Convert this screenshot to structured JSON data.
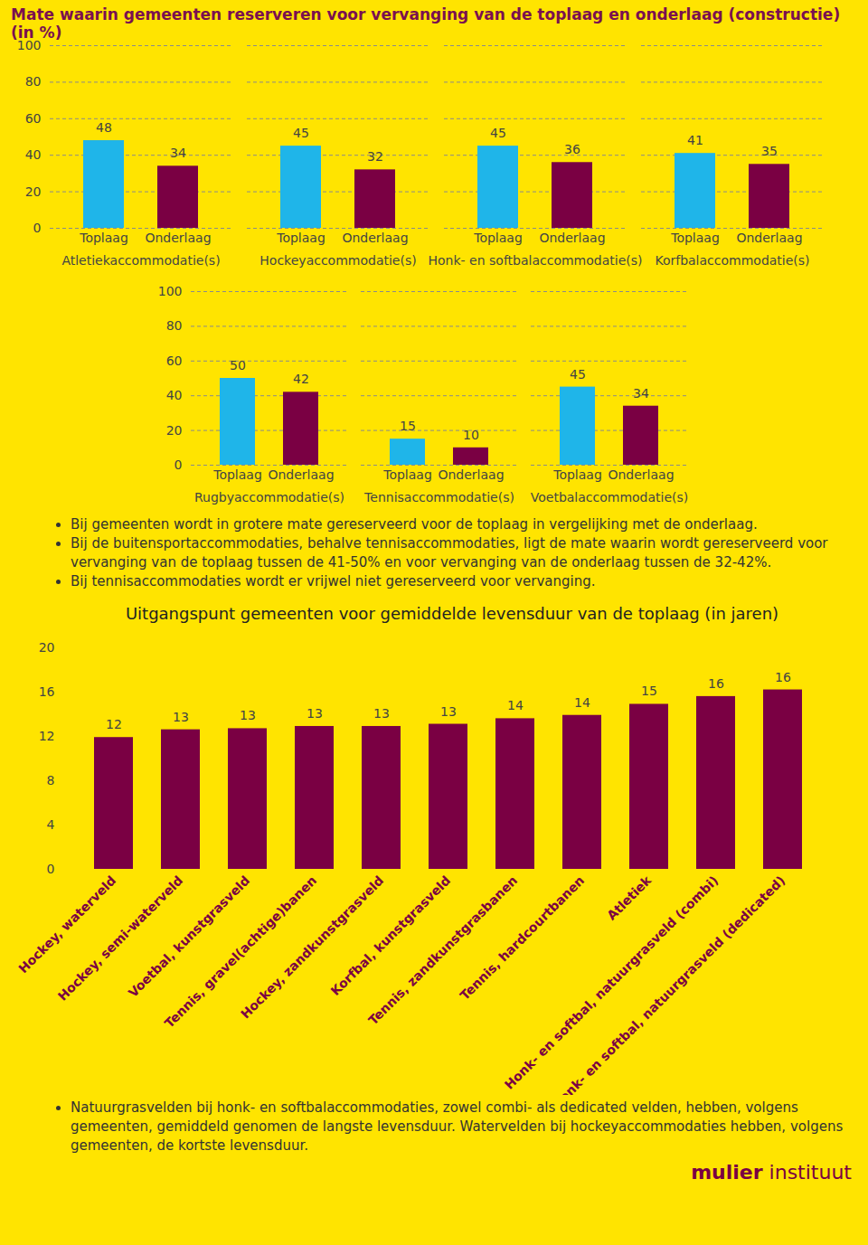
{
  "chart_data": [
    {
      "type": "bar",
      "title": "Mate waarin gemeenten reserveren voor vervanging van de toplaag en onderlaag (constructie) (in %)",
      "categories": [
        "Atletiekaccommodatie(s)",
        "Hockeyaccommodatie(s)",
        "Honk- en softbalaccommodatie(s)",
        "Korfbalaccommodatie(s)"
      ],
      "series": [
        {
          "name": "Toplaag",
          "color": "#1FB5E9",
          "values": [
            48,
            45,
            45,
            41
          ]
        },
        {
          "name": "Onderlaag",
          "color": "#7A0043",
          "values": [
            34,
            32,
            36,
            35
          ]
        }
      ],
      "ylim": [
        0,
        100
      ],
      "yticks": [
        0,
        20,
        40,
        60,
        80,
        100
      ],
      "grid": true,
      "data_labels": true
    },
    {
      "type": "bar",
      "categories": [
        "Rugbyaccommodatie(s)",
        "Tennisaccommodatie(s)",
        "Voetbalaccommodatie(s)"
      ],
      "series": [
        {
          "name": "Toplaag",
          "color": "#1FB5E9",
          "values": [
            50,
            15,
            45
          ]
        },
        {
          "name": "Onderlaag",
          "color": "#7A0043",
          "values": [
            42,
            10,
            34
          ]
        }
      ],
      "ylim": [
        0,
        100
      ],
      "yticks": [
        0,
        20,
        40,
        60,
        80,
        100
      ],
      "grid": true,
      "data_labels": true,
      "notes": [
        "Bij gemeenten wordt in grotere mate gereserveerd voor de toplaag in vergelijking met de onderlaag.",
        "Bij de buitensportaccommodaties, behalve tennisaccommodaties, ligt de mate waarin wordt gereserveerd voor vervanging van de toplaag tussen de 41-50% en voor vervanging van de onderlaag tussen de 32-42%.",
        "Bij tennisaccommodaties wordt er vrijwel niet gereserveerd voor vervanging."
      ]
    },
    {
      "type": "bar",
      "title": "Uitgangspunt gemeenten voor gemiddelde levensduur van de toplaag (in jaren)",
      "categories": [
        "Hockey, waterveld",
        "Hockey, semi-waterveld",
        "Voetbal, kunstgrasveld",
        "Tennis, gravel(achtige)banen",
        "Hockey, zandkunstgrasveld",
        "Korfbal, kunstgrasveld",
        "Tennis, zandkunstgrasbanen",
        "Tennis, hardcourtbanen",
        "Atletiek",
        "Honk- en softbal, natuurgrasveld (combi)",
        "Honk- en softbal, natuurgrasveld (dedicated)"
      ],
      "values": [
        11.9,
        12.6,
        12.7,
        12.9,
        12.9,
        13.1,
        13.6,
        13.9,
        14.9,
        15.6,
        16.2
      ],
      "value_labels": [
        "12",
        "13",
        "13",
        "13",
        "13",
        "13",
        "14",
        "14",
        "15",
        "16",
        "16"
      ],
      "color": "#7A0043",
      "ylim": [
        0,
        20
      ],
      "yticks": [
        0,
        4,
        8,
        12,
        16,
        20
      ],
      "grid": false,
      "data_labels": true,
      "notes": [
        "Natuurgrasvelden bij honk- en softbalaccommodaties, zowel combi- als dedicated velden, hebben, volgens gemeenten, gemiddeld genomen de langste levensduur. Watervelden bij hockeyaccommodaties hebben, volgens gemeenten, de kortste levensduur."
      ]
    }
  ],
  "logo": [
    "mulier",
    "instituut"
  ]
}
